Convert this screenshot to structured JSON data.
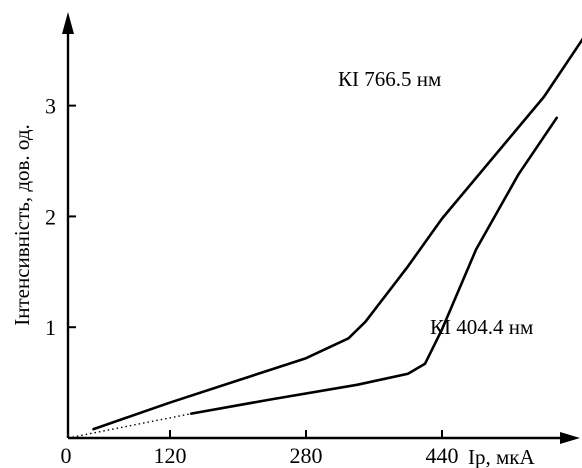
{
  "chart_data": {
    "type": "line",
    "xlabel": "Ip, мкА",
    "ylabel": "Інтенсивність, дов. од.",
    "origin_label": "0",
    "xlim": [
      0,
      600
    ],
    "ylim": [
      0,
      3.8
    ],
    "xticks": [
      120,
      280,
      440
    ],
    "yticks": [
      1,
      2,
      3
    ],
    "grid": false,
    "series": [
      {
        "name": "КІ 766.5 нм",
        "x": [
          30,
          120,
          200,
          280,
          330,
          350,
          400,
          440,
          500,
          560,
          615
        ],
        "y": [
          0.08,
          0.32,
          0.52,
          0.72,
          0.9,
          1.05,
          1.55,
          1.98,
          2.53,
          3.08,
          3.71
        ]
      },
      {
        "name": "КІ 404.4 нм",
        "x": [
          145,
          240,
          340,
          400,
          420,
          440,
          480,
          530,
          575
        ],
        "y": [
          0.22,
          0.35,
          0.48,
          0.58,
          0.67,
          0.98,
          1.7,
          2.38,
          2.89
        ]
      }
    ],
    "extrapolation": {
      "x": [
        0,
        145
      ],
      "y": [
        0,
        0.22
      ]
    }
  }
}
